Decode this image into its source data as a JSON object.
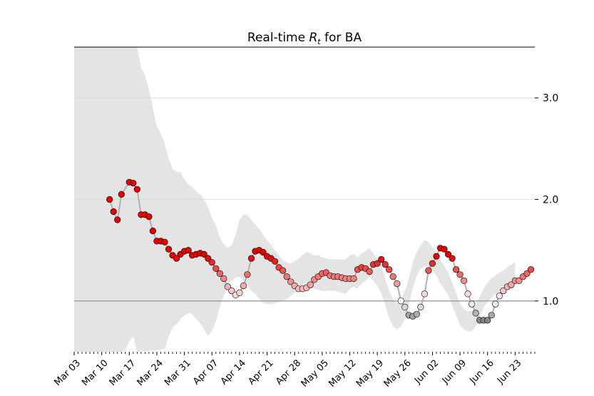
{
  "chart_data": {
    "type": "scatter",
    "title_prefix": "Real-time ",
    "title_symbol": "R",
    "title_subscript": "t",
    "title_suffix": " for BA",
    "xlabel": "",
    "ylabel": "",
    "start_date": "Mar 03",
    "xlim_days": [
      0,
      117
    ],
    "ylim": [
      0.5,
      3.5
    ],
    "yticks": [
      1.0,
      2.0,
      3.0
    ],
    "ytick_labels": [
      "1.0",
      "2.0",
      "3.0"
    ],
    "reference_line": 1.0,
    "xtick_labels": [
      "Mar 03",
      "Mar 10",
      "Mar 17",
      "Mar 24",
      "Mar 31",
      "Apr 07",
      "Apr 14",
      "Apr 21",
      "Apr 28",
      "May 05",
      "May 12",
      "May 19",
      "May 26",
      "Jun 02",
      "Jun 09",
      "Jun 16",
      "Jun 23"
    ],
    "grid": "horizontal",
    "colormap": {
      "low": "#808080",
      "mid": "#ffffff",
      "high": "#e00000"
    },
    "interval_upper": [
      [
        16,
        3.5
      ],
      [
        17,
        3.3
      ],
      [
        18,
        3.22
      ],
      [
        19,
        3.08
      ],
      [
        20,
        2.9
      ],
      [
        21,
        2.72
      ],
      [
        22,
        2.65
      ],
      [
        23,
        2.55
      ],
      [
        24,
        2.4
      ],
      [
        25,
        2.3
      ],
      [
        26,
        2.27
      ],
      [
        27,
        2.27
      ],
      [
        28,
        2.2
      ],
      [
        29,
        2.15
      ],
      [
        30,
        2.12
      ],
      [
        31,
        2.08
      ],
      [
        32,
        2.05
      ],
      [
        33,
        2.0
      ],
      [
        34,
        1.93
      ],
      [
        35,
        1.82
      ],
      [
        36,
        1.74
      ],
      [
        37,
        1.63
      ],
      [
        38,
        1.56
      ],
      [
        39,
        1.52
      ],
      [
        40,
        1.55
      ],
      [
        41,
        1.65
      ],
      [
        42,
        1.8
      ],
      [
        43,
        1.85
      ],
      [
        44,
        1.85
      ],
      [
        45,
        1.8
      ],
      [
        46,
        1.75
      ],
      [
        47,
        1.71
      ],
      [
        48,
        1.65
      ],
      [
        49,
        1.6
      ],
      [
        50,
        1.55
      ],
      [
        51,
        1.5
      ],
      [
        52,
        1.45
      ],
      [
        53,
        1.4
      ],
      [
        54,
        1.38
      ],
      [
        55,
        1.37
      ],
      [
        56,
        1.39
      ],
      [
        57,
        1.42
      ],
      [
        58,
        1.45
      ],
      [
        59,
        1.48
      ],
      [
        60,
        1.47
      ],
      [
        61,
        1.45
      ],
      [
        62,
        1.45
      ],
      [
        63,
        1.43
      ],
      [
        64,
        1.42
      ],
      [
        65,
        1.41
      ],
      [
        66,
        1.41
      ],
      [
        67,
        1.41
      ],
      [
        68,
        1.41
      ],
      [
        69,
        1.41
      ],
      [
        70,
        1.45
      ],
      [
        71,
        1.46
      ],
      [
        72,
        1.43
      ],
      [
        73,
        1.47
      ],
      [
        74,
        1.49
      ],
      [
        75,
        1.52
      ],
      [
        76,
        1.47
      ],
      [
        77,
        1.42
      ],
      [
        78,
        1.35
      ],
      [
        79,
        1.22
      ],
      [
        80,
        1.1
      ],
      [
        81,
        1.02
      ],
      [
        82,
        0.98
      ],
      [
        83,
        1.02
      ],
      [
        84,
        1.1
      ],
      [
        85,
        1.22
      ],
      [
        86,
        1.38
      ],
      [
        87,
        1.48
      ],
      [
        88,
        1.55
      ],
      [
        89,
        1.6
      ],
      [
        90,
        1.58
      ],
      [
        91,
        1.53
      ],
      [
        92,
        1.48
      ],
      [
        93,
        1.4
      ],
      [
        94,
        1.35
      ],
      [
        95,
        1.28
      ],
      [
        96,
        1.18
      ],
      [
        97,
        1.08
      ],
      [
        98,
        0.98
      ],
      [
        99,
        0.92
      ],
      [
        100,
        0.9
      ],
      [
        101,
        0.9
      ],
      [
        102,
        0.96
      ],
      [
        103,
        1.04
      ],
      [
        104,
        1.12
      ],
      [
        105,
        1.18
      ],
      [
        106,
        1.22
      ],
      [
        107,
        1.25
      ],
      [
        108,
        1.28
      ],
      [
        109,
        1.3
      ],
      [
        110,
        1.33
      ],
      [
        111,
        1.36
      ],
      [
        112,
        1.38
      ]
    ],
    "interval_lower": [
      [
        0,
        0.5
      ],
      [
        12,
        0.5
      ],
      [
        13,
        0.52
      ],
      [
        14,
        0.6
      ],
      [
        15,
        0.65
      ],
      [
        16,
        0.5
      ],
      [
        22,
        0.52
      ],
      [
        23,
        0.53
      ],
      [
        24,
        0.65
      ],
      [
        25,
        0.74
      ],
      [
        26,
        0.77
      ],
      [
        27,
        0.82
      ],
      [
        28,
        0.86
      ],
      [
        29,
        0.88
      ],
      [
        30,
        0.87
      ],
      [
        31,
        0.82
      ],
      [
        32,
        0.78
      ],
      [
        33,
        0.72
      ],
      [
        34,
        0.66
      ],
      [
        35,
        0.7
      ],
      [
        36,
        0.8
      ],
      [
        37,
        0.95
      ],
      [
        38,
        1.05
      ],
      [
        39,
        1.15
      ],
      [
        40,
        1.2
      ],
      [
        41,
        1.23
      ],
      [
        42,
        1.24
      ],
      [
        43,
        1.2
      ],
      [
        44,
        1.15
      ],
      [
        45,
        1.1
      ],
      [
        46,
        1.07
      ],
      [
        47,
        1.02
      ],
      [
        48,
        0.98
      ],
      [
        49,
        0.97
      ],
      [
        50,
        0.97
      ],
      [
        51,
        0.98
      ],
      [
        52,
        0.99
      ],
      [
        53,
        1.0
      ],
      [
        54,
        1.02
      ],
      [
        55,
        1.05
      ],
      [
        56,
        1.08
      ],
      [
        57,
        1.11
      ],
      [
        58,
        1.13
      ],
      [
        59,
        1.13
      ],
      [
        60,
        1.13
      ],
      [
        61,
        1.12
      ],
      [
        62,
        1.11
      ],
      [
        63,
        1.1
      ],
      [
        64,
        1.1
      ],
      [
        65,
        1.1
      ],
      [
        66,
        1.1
      ],
      [
        67,
        1.09
      ],
      [
        68,
        1.08
      ],
      [
        69,
        1.07
      ],
      [
        70,
        1.12
      ],
      [
        71,
        1.14
      ],
      [
        72,
        1.12
      ],
      [
        73,
        1.17
      ],
      [
        74,
        1.2
      ],
      [
        75,
        1.24
      ],
      [
        76,
        1.2
      ],
      [
        77,
        1.15
      ],
      [
        78,
        1.08
      ],
      [
        79,
        0.96
      ],
      [
        80,
        0.83
      ],
      [
        81,
        0.75
      ],
      [
        82,
        0.72
      ],
      [
        83,
        0.75
      ],
      [
        84,
        0.82
      ],
      [
        85,
        0.96
      ],
      [
        86,
        1.12
      ],
      [
        87,
        1.25
      ],
      [
        88,
        1.32
      ],
      [
        89,
        1.34
      ],
      [
        90,
        1.34
      ],
      [
        91,
        1.3
      ],
      [
        92,
        1.25
      ],
      [
        93,
        1.17
      ],
      [
        94,
        1.12
      ],
      [
        95,
        1.06
      ],
      [
        96,
        0.96
      ],
      [
        97,
        0.86
      ],
      [
        98,
        0.76
      ],
      [
        99,
        0.72
      ],
      [
        100,
        0.7
      ],
      [
        101,
        0.7
      ],
      [
        102,
        0.75
      ],
      [
        103,
        0.84
      ],
      [
        104,
        0.93
      ],
      [
        105,
        0.99
      ],
      [
        106,
        1.03
      ],
      [
        107,
        1.07
      ],
      [
        108,
        1.1
      ],
      [
        109,
        1.13
      ],
      [
        110,
        1.16
      ],
      [
        111,
        1.19
      ],
      [
        112,
        1.21
      ]
    ],
    "points": [
      [
        9,
        2.0
      ],
      [
        10,
        1.88
      ],
      [
        11,
        1.8
      ],
      [
        12,
        2.05
      ],
      [
        14,
        2.17
      ],
      [
        15,
        2.16
      ],
      [
        16,
        2.1
      ],
      [
        17,
        1.85
      ],
      [
        18,
        1.85
      ],
      [
        19,
        1.83
      ],
      [
        20,
        1.69
      ],
      [
        21,
        1.59
      ],
      [
        22,
        1.59
      ],
      [
        23,
        1.58
      ],
      [
        24,
        1.51
      ],
      [
        25,
        1.45
      ],
      [
        26,
        1.42
      ],
      [
        27,
        1.46
      ],
      [
        28,
        1.49
      ],
      [
        29,
        1.5
      ],
      [
        30,
        1.45
      ],
      [
        31,
        1.46
      ],
      [
        32,
        1.47
      ],
      [
        33,
        1.46
      ],
      [
        34,
        1.42
      ],
      [
        35,
        1.38
      ],
      [
        36,
        1.32
      ],
      [
        37,
        1.27
      ],
      [
        38,
        1.22
      ],
      [
        39,
        1.14
      ],
      [
        40,
        1.1
      ],
      [
        41,
        1.06
      ],
      [
        42,
        1.08
      ],
      [
        43,
        1.15
      ],
      [
        44,
        1.26
      ],
      [
        45,
        1.42
      ],
      [
        46,
        1.49
      ],
      [
        47,
        1.5
      ],
      [
        48,
        1.48
      ],
      [
        49,
        1.44
      ],
      [
        50,
        1.42
      ],
      [
        51,
        1.39
      ],
      [
        52,
        1.33
      ],
      [
        53,
        1.3
      ],
      [
        54,
        1.24
      ],
      [
        55,
        1.19
      ],
      [
        56,
        1.15
      ],
      [
        57,
        1.12
      ],
      [
        58,
        1.12
      ],
      [
        59,
        1.13
      ],
      [
        60,
        1.16
      ],
      [
        61,
        1.21
      ],
      [
        62,
        1.24
      ],
      [
        63,
        1.27
      ],
      [
        64,
        1.28
      ],
      [
        65,
        1.25
      ],
      [
        66,
        1.24
      ],
      [
        67,
        1.24
      ],
      [
        68,
        1.23
      ],
      [
        69,
        1.22
      ],
      [
        70,
        1.22
      ],
      [
        71,
        1.22
      ],
      [
        72,
        1.31
      ],
      [
        73,
        1.33
      ],
      [
        74,
        1.32
      ],
      [
        75,
        1.29
      ],
      [
        76,
        1.36
      ],
      [
        77,
        1.37
      ],
      [
        78,
        1.41
      ],
      [
        79,
        1.36
      ],
      [
        80,
        1.31
      ],
      [
        81,
        1.24
      ],
      [
        82,
        1.17
      ],
      [
        83,
        1.0
      ],
      [
        84,
        0.94
      ],
      [
        85,
        0.86
      ],
      [
        86,
        0.85
      ],
      [
        87,
        0.87
      ],
      [
        88,
        0.94
      ],
      [
        89,
        1.07
      ],
      [
        90,
        1.3
      ],
      [
        91,
        1.37
      ],
      [
        92,
        1.44
      ],
      [
        93,
        1.52
      ],
      [
        94,
        1.51
      ],
      [
        95,
        1.46
      ],
      [
        96,
        1.42
      ],
      [
        97,
        1.31
      ],
      [
        98,
        1.26
      ],
      [
        99,
        1.2
      ],
      [
        100,
        1.07
      ],
      [
        101,
        0.97
      ],
      [
        102,
        0.88
      ],
      [
        103,
        0.81
      ],
      [
        104,
        0.81
      ],
      [
        105,
        0.81
      ],
      [
        106,
        0.86
      ],
      [
        107,
        0.97
      ],
      [
        108,
        1.05
      ],
      [
        109,
        1.1
      ],
      [
        110,
        1.14
      ],
      [
        111,
        1.16
      ],
      [
        112,
        1.2
      ],
      [
        113,
        1.2
      ],
      [
        114,
        1.24
      ],
      [
        115,
        1.27
      ],
      [
        116,
        1.31
      ]
    ]
  }
}
